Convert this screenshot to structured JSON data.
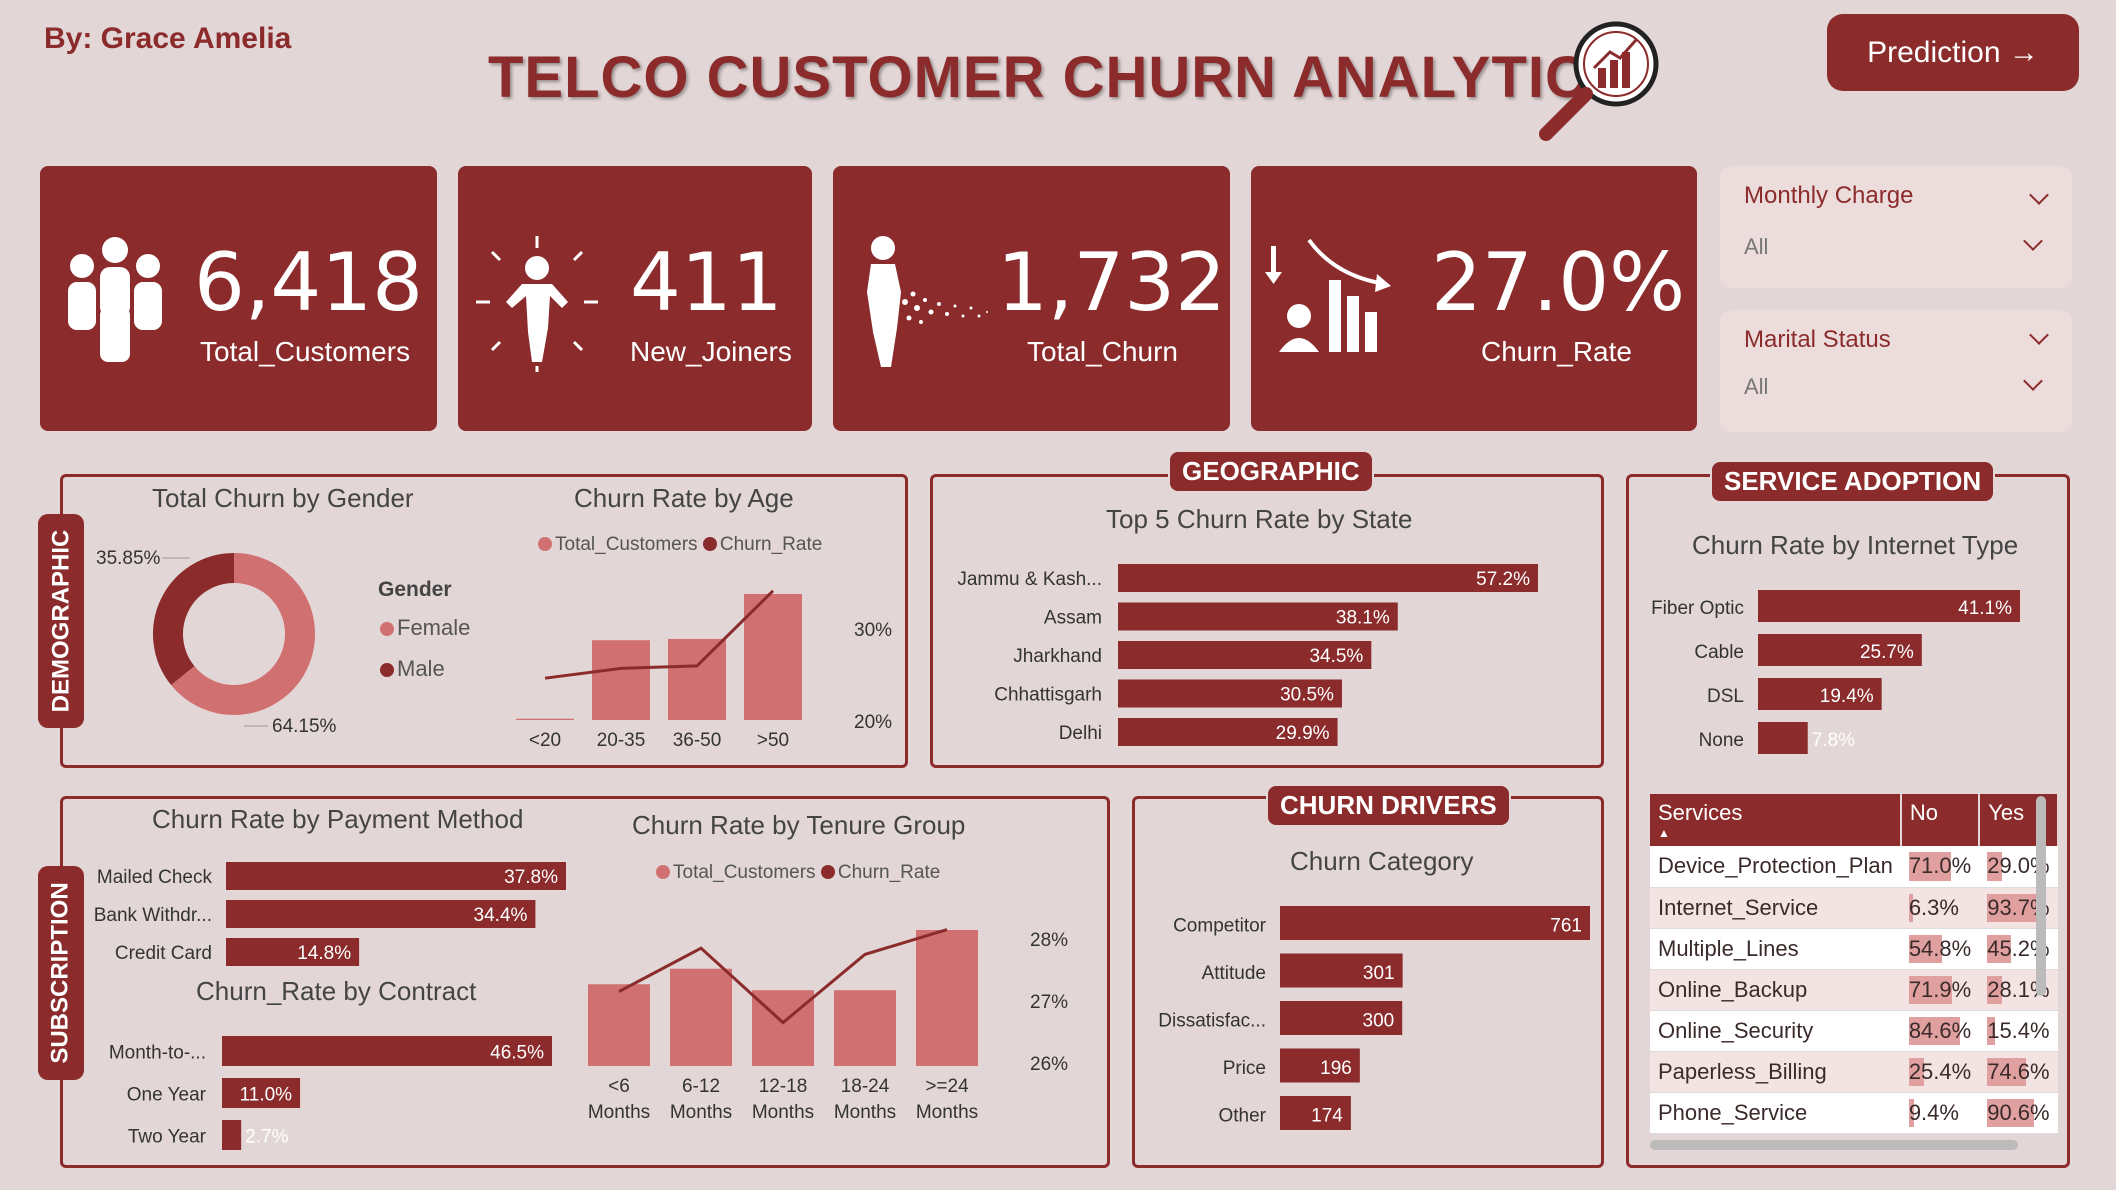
{
  "header": {
    "author": "By: Grace Amelia",
    "title": "TELCO CUSTOMER CHURN ANALYTICS",
    "prediction_button": "Prediction →"
  },
  "kpis": [
    {
      "value": "6,418",
      "label": "Total_Customers",
      "icon": "people-group-icon"
    },
    {
      "value": "411",
      "label": "New_Joiners",
      "icon": "person-joining-icon"
    },
    {
      "value": "1,732",
      "label": "Total_Churn",
      "icon": "person-dissolving-icon"
    },
    {
      "value": "27.0%",
      "label": "Churn_Rate",
      "icon": "declining-chart-icon"
    }
  ],
  "filters": [
    {
      "title": "Monthly Charge",
      "value": "All"
    },
    {
      "title": "Marital Status",
      "value": "All"
    }
  ],
  "sections": {
    "demographic": "DEMOGRAPHIC",
    "geographic": "GEOGRAPHIC",
    "service": "SERVICE ADOPTION",
    "subscription": "SUBSCRIPTION",
    "drivers": "CHURN DRIVERS"
  },
  "colors": {
    "primary": "#8b2b2b",
    "light": "#d07070",
    "background": "#e3d6d6"
  },
  "chart_data": [
    {
      "id": "gender",
      "type": "pie",
      "title": "Total Churn by Gender",
      "legend_title": "Gender",
      "categories": [
        "Female",
        "Male"
      ],
      "values": [
        64.15,
        35.85
      ],
      "labels": [
        "64.15%",
        "35.85%"
      ]
    },
    {
      "id": "age",
      "type": "bar",
      "title": "Churn Rate by Age",
      "legend": [
        "Total_Customers",
        "Churn_Rate"
      ],
      "categories": [
        "<20",
        "20-35",
        "36-50",
        ">50"
      ],
      "series": [
        {
          "name": "Total_Customers",
          "values": [
            30,
            1900,
            1930,
            3000
          ]
        },
        {
          "name": "Churn_Rate",
          "values": [
            23.4,
            24.2,
            24.4,
            30.5
          ]
        }
      ],
      "y2_ticks": [
        "30%",
        "20%"
      ]
    },
    {
      "id": "state",
      "type": "bar",
      "title": "Top 5 Churn Rate by State",
      "categories": [
        "Jammu & Kash...",
        "Assam",
        "Jharkhand",
        "Chhattisgarh",
        "Delhi"
      ],
      "values": [
        57.2,
        38.1,
        34.5,
        30.5,
        29.9
      ],
      "labels": [
        "57.2%",
        "38.1%",
        "34.5%",
        "30.5%",
        "29.9%"
      ]
    },
    {
      "id": "internet",
      "type": "bar",
      "title": "Churn Rate by Internet Type",
      "categories": [
        "Fiber Optic",
        "Cable",
        "DSL",
        "None"
      ],
      "values": [
        41.1,
        25.7,
        19.4,
        7.8
      ],
      "labels": [
        "41.1%",
        "25.7%",
        "19.4%",
        "7.8%"
      ]
    },
    {
      "id": "payment",
      "type": "bar",
      "title": "Churn Rate by Payment Method",
      "categories": [
        "Mailed Check",
        "Bank Withdr...",
        "Credit Card"
      ],
      "values": [
        37.8,
        34.4,
        14.8
      ],
      "labels": [
        "37.8%",
        "34.4%",
        "14.8%"
      ]
    },
    {
      "id": "contract",
      "type": "bar",
      "title": "Churn_Rate by Contract",
      "categories": [
        "Month-to-...",
        "One Year",
        "Two Year"
      ],
      "values": [
        46.5,
        11.0,
        2.7
      ],
      "labels": [
        "46.5%",
        "11.0%",
        "2.7%"
      ]
    },
    {
      "id": "tenure",
      "type": "bar",
      "title": "Churn Rate by Tenure Group",
      "legend": [
        "Total_Customers",
        "Churn_Rate"
      ],
      "categories": [
        "<6 Months",
        "6-12 Months",
        "12-18 Months",
        "18-24 Months",
        ">=24 Months"
      ],
      "series": [
        {
          "name": "Total_Customers",
          "values": [
            950,
            1130,
            880,
            880,
            1580
          ]
        },
        {
          "name": "Churn_Rate",
          "values": [
            26.4,
            27.1,
            25.9,
            27.0,
            27.4
          ]
        }
      ],
      "y2_ticks": [
        "28%",
        "27%",
        "26%"
      ]
    },
    {
      "id": "category",
      "type": "bar",
      "title": "Churn Category",
      "categories": [
        "Competitor",
        "Attitude",
        "Dissatisfac...",
        "Price",
        "Other"
      ],
      "values": [
        761,
        301,
        300,
        196,
        174
      ],
      "labels": [
        "761",
        "301",
        "300",
        "196",
        "174"
      ]
    },
    {
      "id": "services",
      "type": "table",
      "columns": [
        "Services",
        "No",
        "Yes"
      ],
      "rows": [
        [
          "Device_Protection_Plan",
          "71.0%",
          "29.0%"
        ],
        [
          "Internet_Service",
          "6.3%",
          "93.7%"
        ],
        [
          "Multiple_Lines",
          "54.8%",
          "45.2%"
        ],
        [
          "Online_Backup",
          "71.9%",
          "28.1%"
        ],
        [
          "Online_Security",
          "84.6%",
          "15.4%"
        ],
        [
          "Paperless_Billing",
          "25.4%",
          "74.6%"
        ],
        [
          "Phone_Service",
          "9.4%",
          "90.6%"
        ]
      ]
    }
  ]
}
